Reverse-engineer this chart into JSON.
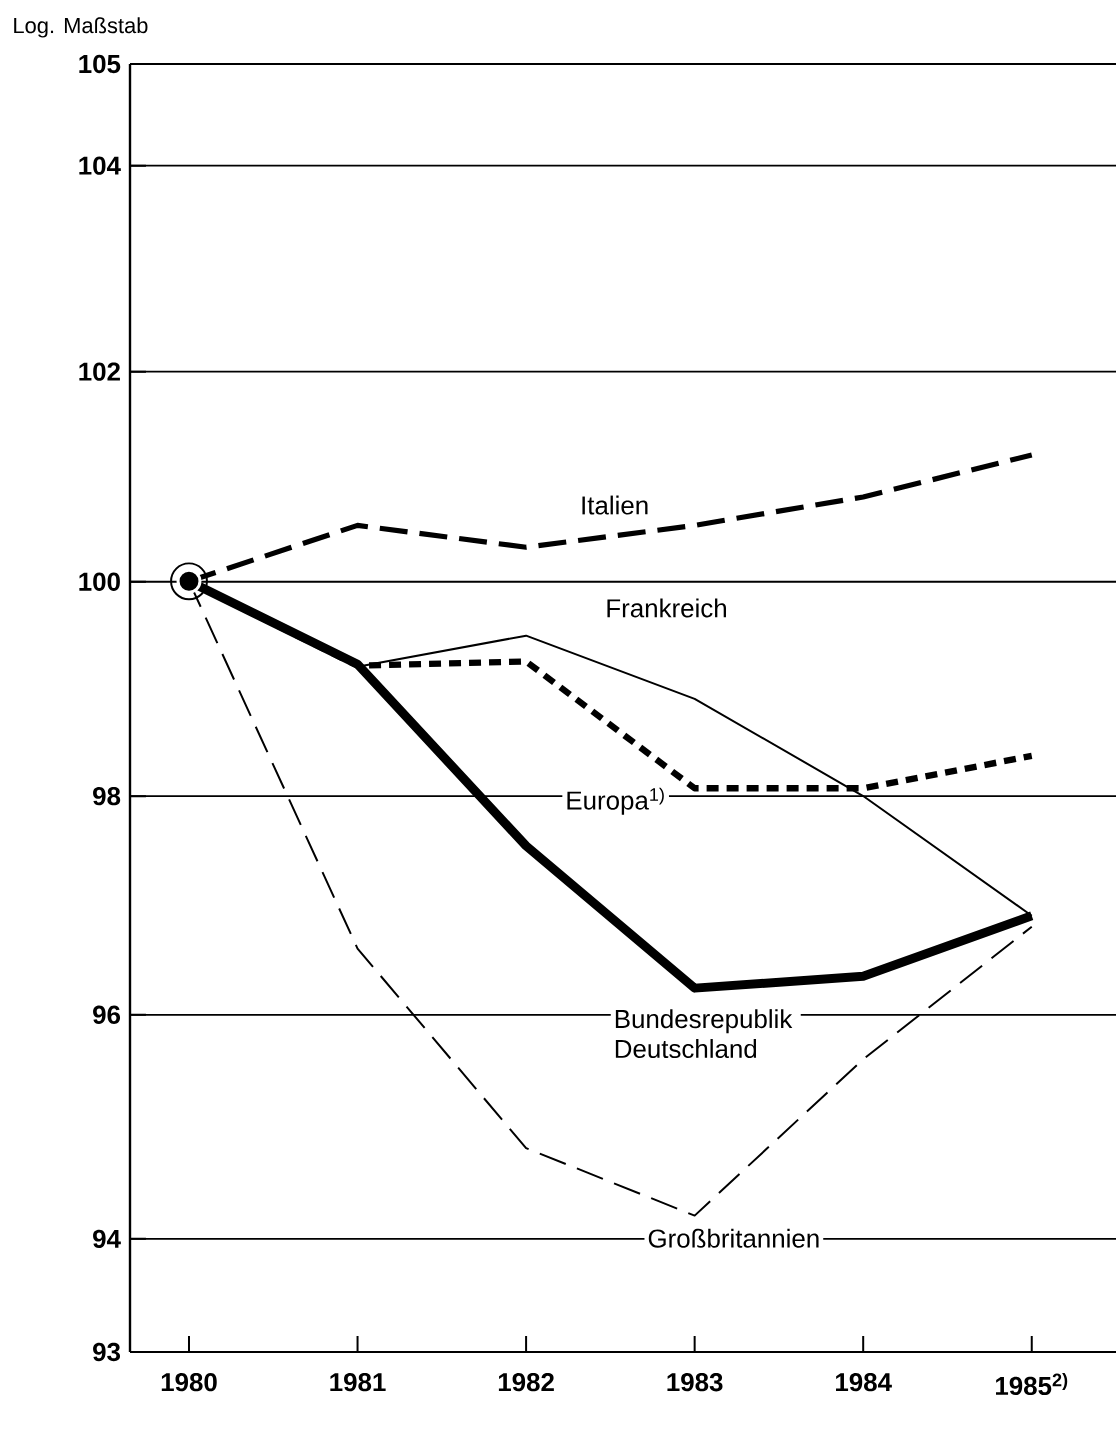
{
  "chart_data": {
    "type": "line",
    "ylabel": "Log. Maßstab",
    "log": "y",
    "grid": "y",
    "x": [
      1980,
      1981,
      1982,
      1983,
      1984,
      1985
    ],
    "xlim": [
      1979.65,
      1985.5
    ],
    "xticks": [
      1980,
      1981,
      1982,
      1983,
      1984,
      {
        "value": 1985,
        "label": "1985$^{2)}$"
      }
    ],
    "ylim": [
      93,
      105
    ],
    "yticks": [
      93,
      94,
      96,
      98,
      100,
      102,
      104,
      105
    ],
    "series": [
      {
        "name": "Italien",
        "color": "#000000",
        "line_style": "dashed",
        "values": [
          100,
          100.53,
          100.32,
          100.53,
          100.8,
          101.2
        ]
      },
      {
        "name": "Frankreich",
        "color": "#000000",
        "line_style": "solid",
        "values": [
          100,
          99.2,
          99.49,
          98.9,
          98.0,
          96.9
        ]
      },
      {
        "name": "Europa$^{1)}$",
        "color": "#000000",
        "line_style": "dotted",
        "values": [
          100,
          99.21,
          99.25,
          98.07,
          98.07,
          98.37
        ]
      },
      {
        "name": "Bundesrepublik Deutschland",
        "color": "#000000",
        "line_style": "solid",
        "values": [
          100,
          99.22,
          97.54,
          96.24,
          96.35,
          96.9
        ]
      },
      {
        "name": "Großbritannien",
        "color": "#000000",
        "line_style": "dashed",
        "values": [
          100,
          96.6,
          94.8,
          94.2,
          95.6,
          96.8
        ]
      }
    ]
  }
}
